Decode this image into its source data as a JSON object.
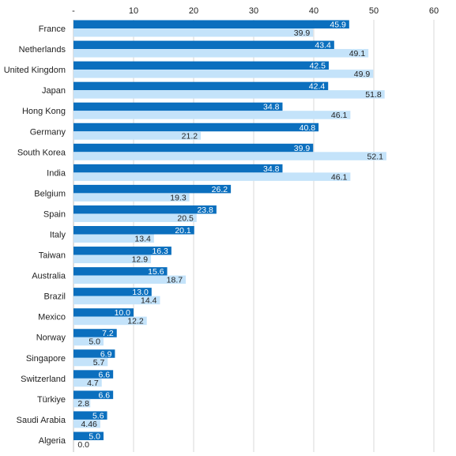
{
  "chart_data": {
    "type": "bar",
    "orientation": "horizontal",
    "title": "",
    "xlabel": "",
    "ylabel": "",
    "xlim": [
      0,
      60
    ],
    "x_ticks": [
      0,
      10,
      20,
      30,
      40,
      50,
      60
    ],
    "x_tick_labels": [
      "-",
      "10",
      "20",
      "30",
      "40",
      "50",
      "60"
    ],
    "x_axis_position": "top",
    "grid": true,
    "legend": "none",
    "categories": [
      "France",
      "Netherlands",
      "United Kingdom",
      "Japan",
      "Hong Kong",
      "Germany",
      "South Korea",
      "India",
      "Belgium",
      "Spain",
      "Italy",
      "Taiwan",
      "Australia",
      "Brazil",
      "Mexico",
      "Norway",
      "Singapore",
      "Switzerland",
      "Türkiye",
      "Saudi Arabia",
      "Algeria"
    ],
    "series": [
      {
        "color": "#0b6fbe",
        "label_color": "#ffffff",
        "values": [
          45.9,
          43.4,
          42.5,
          42.4,
          34.8,
          40.8,
          39.9,
          34.8,
          26.2,
          23.8,
          20.1,
          16.3,
          15.6,
          13.0,
          10.0,
          7.2,
          6.9,
          6.6,
          6.6,
          5.6,
          5.0
        ],
        "value_labels": [
          "45.9",
          "43.4",
          "42.5",
          "42.4",
          "34.8",
          "40.8",
          "39.9",
          "34.8",
          "26.2",
          "23.8",
          "20.1",
          "16.3",
          "15.6",
          "13.0",
          "10.0",
          "7.2",
          "6.9",
          "6.6",
          "6.6",
          "5.6",
          "5.0"
        ]
      },
      {
        "color": "#c4e3fa",
        "label_color": "#222222",
        "values": [
          39.9,
          49.1,
          49.9,
          51.8,
          46.1,
          21.2,
          52.1,
          46.1,
          19.3,
          20.5,
          13.4,
          12.9,
          18.7,
          14.4,
          12.2,
          5.0,
          5.7,
          4.7,
          2.8,
          4.46,
          0.0
        ],
        "value_labels": [
          "39.9",
          "49.1",
          "49.9",
          "51.8",
          "46.1",
          "21.2",
          "52.1",
          "46.1",
          "19.3",
          "20.5",
          "13.4",
          "12.9",
          "18.7",
          "14.4",
          "12.2",
          "5.0",
          "5.7",
          "4.7",
          "2.8",
          "4.46",
          "0.0"
        ]
      }
    ]
  }
}
